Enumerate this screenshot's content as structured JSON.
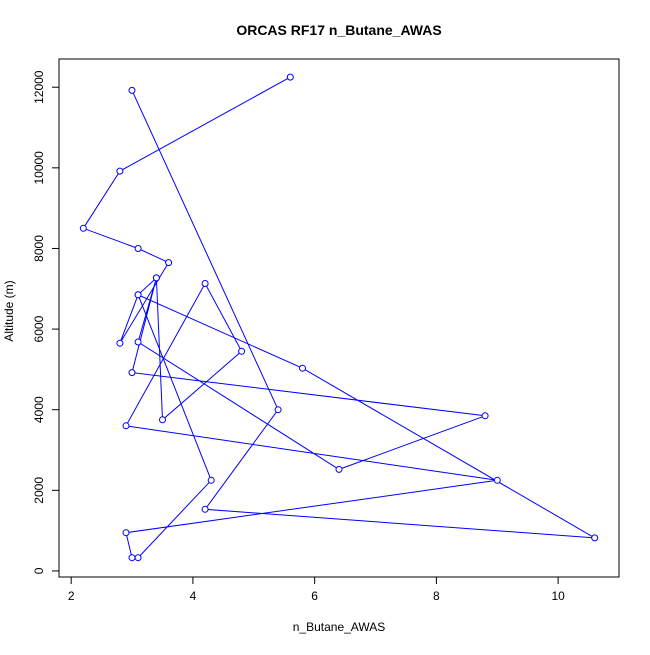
{
  "chart_data": {
    "type": "line",
    "title": "ORCAS RF17 n_Butane_AWAS",
    "xlabel": "n_Butane_AWAS",
    "ylabel": "Altitude (m)",
    "xlim": [
      1.8,
      11.0
    ],
    "ylim": [
      -150,
      12700
    ],
    "x_ticks": [
      2,
      4,
      6,
      8,
      10
    ],
    "y_ticks": [
      0,
      2000,
      4000,
      6000,
      8000,
      10000,
      12000
    ],
    "x_tick_labels": [
      "2",
      "4",
      "6",
      "8",
      "10"
    ],
    "y_tick_labels": [
      "0",
      "2000",
      "4000",
      "6000",
      "8000",
      "10000",
      "12000"
    ],
    "grid": false,
    "legend": "none",
    "series": [
      {
        "color": "#0000ff",
        "marker": "open-circle",
        "points": [
          {
            "x": 5.6,
            "y": 12250
          },
          {
            "x": 2.8,
            "y": 9920
          },
          {
            "x": 2.2,
            "y": 8500
          },
          {
            "x": 3.1,
            "y": 8000
          },
          {
            "x": 3.6,
            "y": 7650
          },
          {
            "x": 2.8,
            "y": 5650
          },
          {
            "x": 3.1,
            "y": 6850
          },
          {
            "x": 4.3,
            "y": 2250
          },
          {
            "x": 3.1,
            "y": 330
          },
          {
            "x": 3.0,
            "y": 330
          },
          {
            "x": 2.9,
            "y": 950
          },
          {
            "x": 9.0,
            "y": 2250
          },
          {
            "x": 2.9,
            "y": 3600
          },
          {
            "x": 4.2,
            "y": 7130
          },
          {
            "x": 4.8,
            "y": 5450
          },
          {
            "x": 3.5,
            "y": 3750
          },
          {
            "x": 3.4,
            "y": 7270
          },
          {
            "x": 3.1,
            "y": 5680
          },
          {
            "x": 6.4,
            "y": 2520
          },
          {
            "x": 8.8,
            "y": 3850
          },
          {
            "x": 3.0,
            "y": 4920
          },
          {
            "x": 3.4,
            "y": 7270
          },
          {
            "x": 3.1,
            "y": 6850
          },
          {
            "x": 5.8,
            "y": 5030
          },
          {
            "x": 10.6,
            "y": 820
          },
          {
            "x": 4.2,
            "y": 1530
          },
          {
            "x": 5.4,
            "y": 4000
          },
          {
            "x": 3.0,
            "y": 11920
          }
        ]
      }
    ]
  }
}
